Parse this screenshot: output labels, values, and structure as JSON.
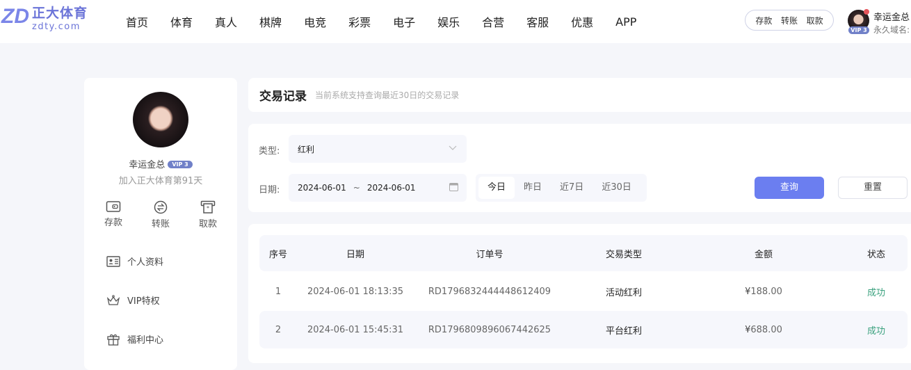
{
  "brand": {
    "name_cn": "正大体育",
    "domain": "zdty.com",
    "logo_mark": "ZD"
  },
  "nav": [
    "首页",
    "体育",
    "真人",
    "棋牌",
    "电竞",
    "彩票",
    "电子",
    "娱乐",
    "合营",
    "客服",
    "优惠",
    "APP"
  ],
  "header": {
    "quick": [
      "存款",
      "转账",
      "取款"
    ],
    "username": "幸运金总",
    "vip": "VIP 3",
    "domain_label": "永久域名:"
  },
  "sidebar": {
    "username": "幸运金总",
    "vip": "VIP 3",
    "joined": "加入正大体育第91天",
    "actions": [
      {
        "label": "存款",
        "icon": "wallet-icon"
      },
      {
        "label": "转账",
        "icon": "transfer-icon"
      },
      {
        "label": "取款",
        "icon": "withdraw-icon"
      }
    ],
    "menu": [
      {
        "label": "个人资料",
        "icon": "id-card-icon"
      },
      {
        "label": "VIP特权",
        "icon": "crown-icon"
      },
      {
        "label": "福利中心",
        "icon": "gift-icon"
      }
    ]
  },
  "page": {
    "title": "交易记录",
    "subtitle": "当前系统支持查询最近30日的交易记录"
  },
  "filter": {
    "type_label": "类型:",
    "type_value": "红利",
    "date_label": "日期:",
    "date_start": "2024-06-01",
    "date_sep": "~",
    "date_end": "2024-06-01",
    "quick_dates": [
      "今日",
      "昨日",
      "近7日",
      "近30日"
    ],
    "quick_selected": "今日",
    "query": "查询",
    "reset": "重置"
  },
  "table": {
    "columns": [
      "序号",
      "日期",
      "订单号",
      "交易类型",
      "金额",
      "状态"
    ],
    "rows": [
      {
        "no": "1",
        "date": "2024-06-01 18:13:35",
        "order": "RD1796832444448612409",
        "type": "活动红利",
        "currency": "¥",
        "amount": "188.00",
        "status": "成功"
      },
      {
        "no": "2",
        "date": "2024-06-01 15:45:31",
        "order": "RD1796809896067442625",
        "type": "平台红利",
        "currency": "¥",
        "amount": "688.00",
        "status": "成功"
      }
    ]
  },
  "colors": {
    "accent": "#6b7ef0",
    "success": "#3aa17e",
    "brand": "#6b74d8"
  }
}
